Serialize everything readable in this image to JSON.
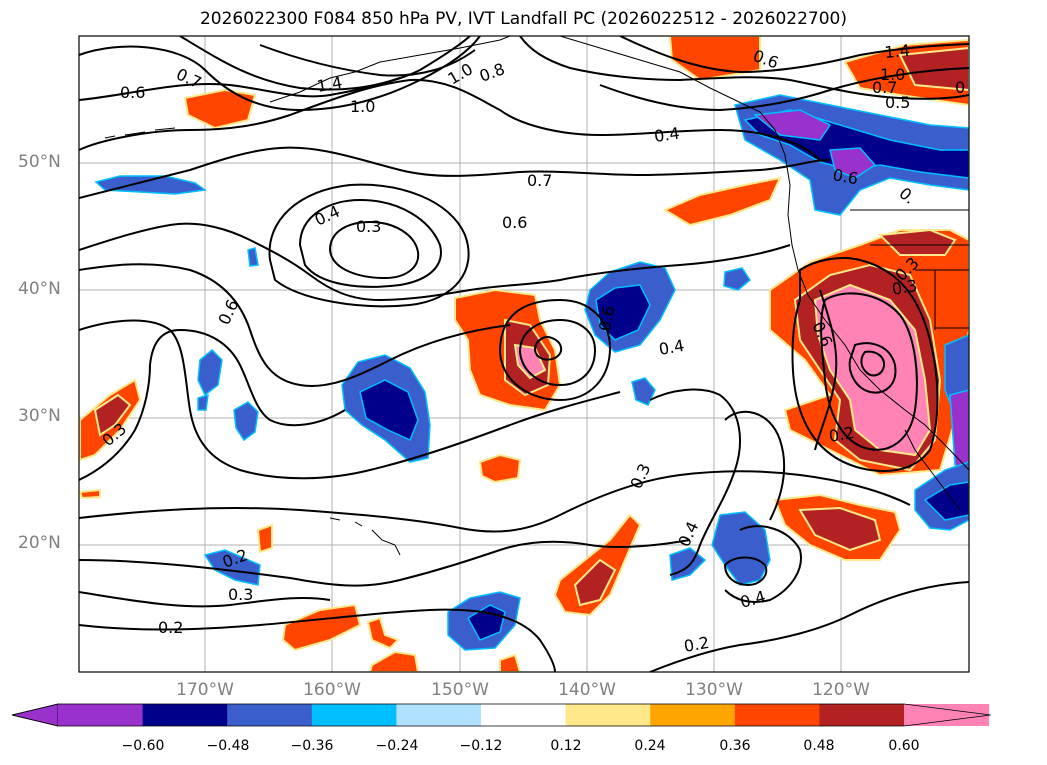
{
  "title": "2026022300 F084 850 hPa PV, IVT Landfall PC (2026022512 - 2026022700)",
  "axes": {
    "lat_ticks": [
      "50°N",
      "40°N",
      "30°N",
      "20°N"
    ],
    "lon_ticks": [
      "170°W",
      "160°W",
      "150°W",
      "140°W",
      "130°W",
      "120°W"
    ]
  },
  "colorbar": {
    "ticks": [
      "−0.60",
      "−0.48",
      "−0.36",
      "−0.24",
      "−0.12",
      "0.12",
      "0.24",
      "0.36",
      "0.48",
      "0.60"
    ],
    "colors": [
      "#9932cc",
      "#00008b",
      "#3a5fcd",
      "#00bfff",
      "#b0e2ff",
      "#ffffff",
      "#ffe88a",
      "#ffa500",
      "#ff4500",
      "#b22222",
      "#ff83b4"
    ]
  },
  "contour_labels": [
    "0.7",
    "0.6",
    "1.4",
    "1.0",
    "1.0",
    "0.8",
    "0.6",
    "1.4",
    "1.0",
    "0.7",
    "0.5",
    "0",
    "0.4",
    "0.7",
    "0.6",
    "0.4",
    "0.3",
    "0.6",
    "0.6",
    "0.4",
    "0.3",
    "0.3",
    "0.3",
    "0.4",
    "0.2",
    "0.2",
    "0.3",
    "0.2",
    "0.4",
    "0.2",
    "0.3",
    "0.6",
    "0.6",
    "0."
  ]
}
